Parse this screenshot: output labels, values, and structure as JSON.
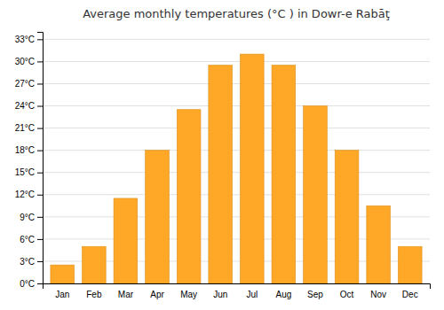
{
  "chart_data": {
    "type": "bar",
    "title": "Average monthly temperatures (°C ) in Dowr-e Rabāţ",
    "categories": [
      "Jan",
      "Feb",
      "Mar",
      "Apr",
      "May",
      "Jun",
      "Jul",
      "Aug",
      "Sep",
      "Oct",
      "Nov",
      "Dec"
    ],
    "values": [
      2.5,
      5.0,
      11.5,
      18.0,
      23.5,
      29.5,
      31.0,
      29.5,
      24.0,
      18.0,
      10.5,
      5.0
    ],
    "color": "#FFA726",
    "ylim": [
      0,
      34
    ],
    "yticks": [
      {
        "value": 0,
        "label": "0°C"
      },
      {
        "value": 3,
        "label": "3°C"
      },
      {
        "value": 6,
        "label": "6°C"
      },
      {
        "value": 9,
        "label": "9°C"
      },
      {
        "value": 12,
        "label": "12°C"
      },
      {
        "value": 15,
        "label": "15°C"
      },
      {
        "value": 18,
        "label": "18°C"
      },
      {
        "value": 21,
        "label": "21°C"
      },
      {
        "value": 24,
        "label": "24°C"
      },
      {
        "value": 27,
        "label": "27°C"
      },
      {
        "value": 30,
        "label": "30°C"
      },
      {
        "value": 33,
        "label": "33°C"
      }
    ],
    "grid": true
  }
}
